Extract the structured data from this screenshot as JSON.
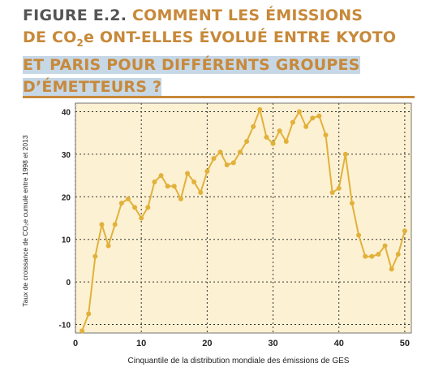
{
  "figure": {
    "label": "FIGURE E.2.",
    "title_line1": "COMMENT LES ÉMISSIONS",
    "title_line2a": "DE CO",
    "title_line2_sub": "2",
    "title_line2b": "e ONT-ELLES ÉVOLUÉ ENTRE KYOTO",
    "title_line3": "ET PARIS POUR DIFFÉRENTS GROUPES",
    "title_line4": "D’ÉMETTEURS ?"
  },
  "colors": {
    "accent": "#c7893a",
    "line": "#e1b13b",
    "plot_bg": "#fdf1d3",
    "highlight": "#c6d7e6"
  },
  "chart_data": {
    "type": "line",
    "xlabel": "Cinquantile de la distribution mondiale des émissions de GES",
    "ylabel": "Taux de croissance de CO₂e cumulé entre 1998 et 2013",
    "xlim": [
      0,
      51
    ],
    "ylim": [
      -12,
      42
    ],
    "xticks": [
      0,
      10,
      20,
      30,
      40,
      50
    ],
    "yticks": [
      -10,
      0,
      10,
      20,
      30,
      40
    ],
    "grid": true,
    "legend": "none",
    "series": [
      {
        "x": [
          1,
          2,
          3,
          4,
          5,
          6,
          7,
          8,
          9,
          10,
          11,
          12,
          13,
          14,
          15,
          16,
          17,
          18,
          19,
          20,
          21,
          22,
          23,
          24,
          25,
          26,
          27,
          28,
          29,
          30,
          31,
          32,
          33,
          34,
          35,
          36,
          37,
          38,
          39,
          40,
          41,
          42,
          43,
          44,
          45,
          46,
          47,
          48,
          49,
          50
        ],
        "values": [
          -11.5,
          -7.5,
          6,
          13.5,
          8.5,
          13.5,
          18.5,
          19.5,
          17.5,
          15,
          17.5,
          23.5,
          25,
          22.5,
          22.5,
          19.5,
          25.5,
          23.5,
          21,
          26,
          29,
          30.5,
          27.5,
          28,
          30.5,
          33,
          36.5,
          40.5,
          34,
          32.5,
          35.5,
          33,
          37.5,
          40,
          36.5,
          38.5,
          39,
          34.5,
          21,
          22,
          30,
          18.5,
          11,
          6,
          6,
          6.5,
          8.5,
          3,
          6.5,
          12
        ]
      }
    ]
  }
}
